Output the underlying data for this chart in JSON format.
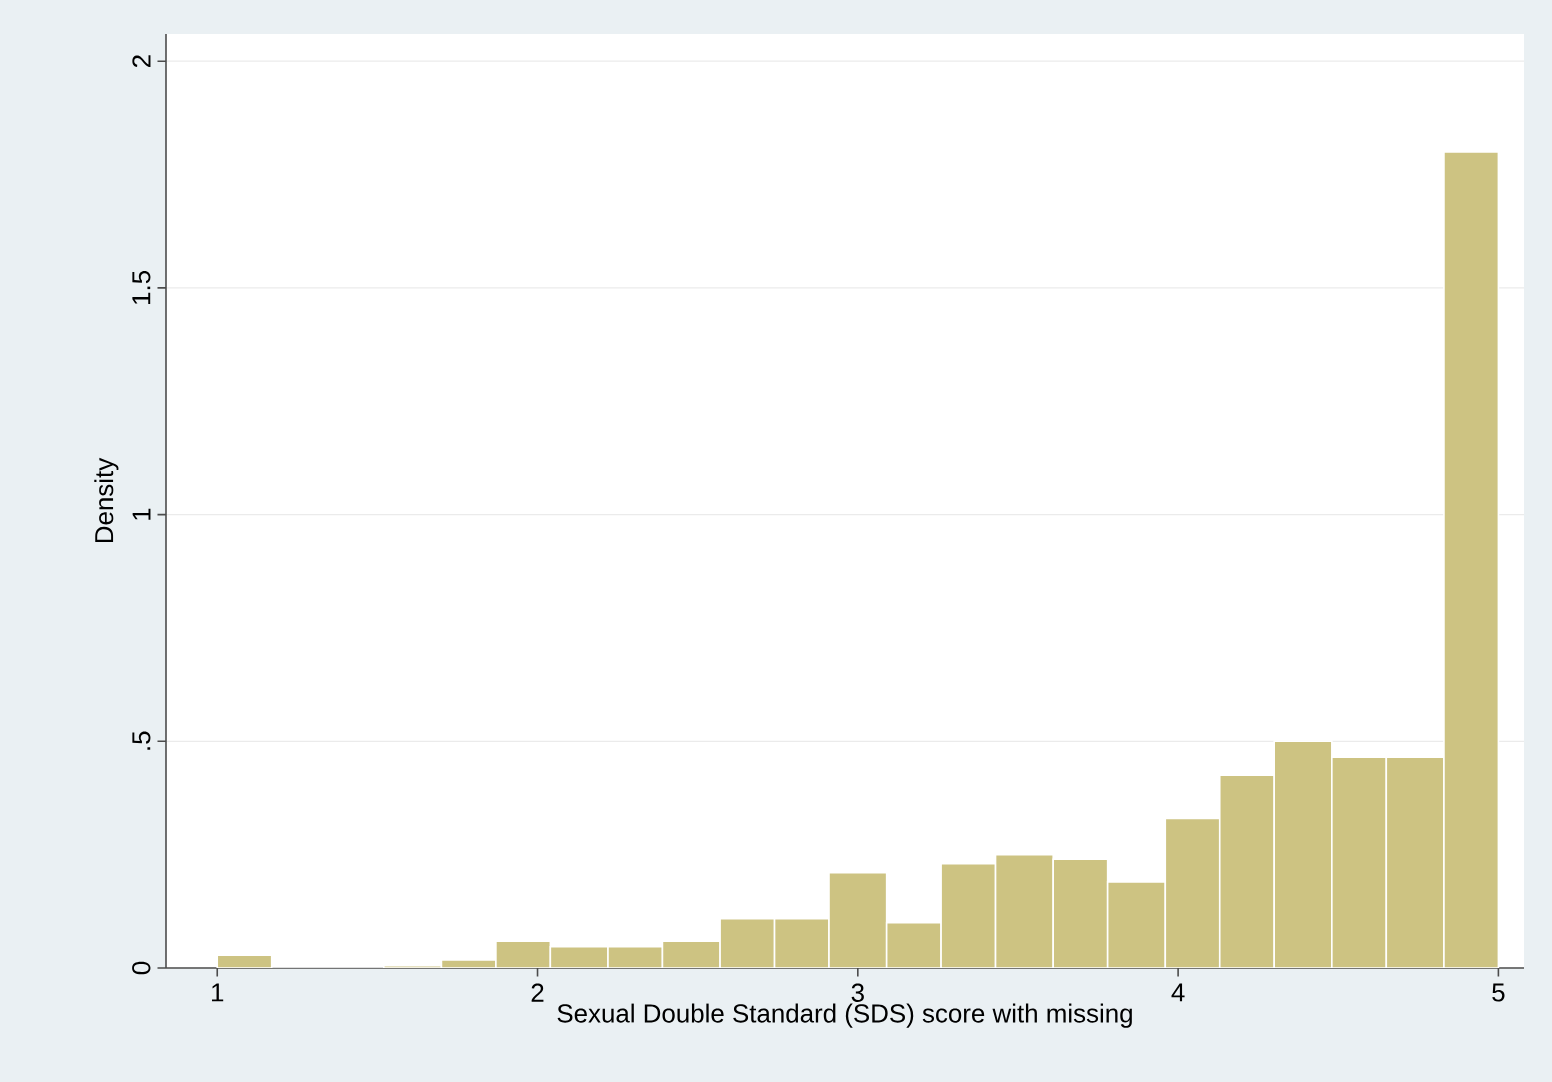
{
  "chart_data": {
    "type": "histogram",
    "xlabel": "Sexual Double Standard (SDS) score with missing",
    "ylabel": "Density",
    "bins": [
      1,
      1.17,
      1.52,
      1.7,
      1.87,
      2.04,
      2.22,
      2.39,
      2.57,
      2.74,
      2.91,
      3.09,
      3.26,
      3.43,
      3.61,
      3.78,
      3.96,
      4.13,
      4.3,
      4.48,
      4.65,
      4.83,
      5
    ],
    "values": [
      0.028,
      0,
      0.005,
      0.018,
      0.059,
      0.047,
      0.047,
      0.059,
      0.109,
      0.109,
      0.21,
      0.1,
      0.23,
      0.25,
      0.24,
      0.19,
      0.33,
      0.425,
      0.5,
      0.465,
      0.465,
      1.8
    ],
    "color": "#cdc382",
    "xlim": [
      0.84,
      5.08
    ],
    "ylim": [
      0,
      2.06
    ],
    "xticks": [
      1,
      2,
      3,
      4,
      5
    ],
    "yticks": [
      0,
      {
        "value": 0.5,
        "label": ".5"
      },
      1,
      1.5,
      2
    ],
    "grid": "y"
  }
}
